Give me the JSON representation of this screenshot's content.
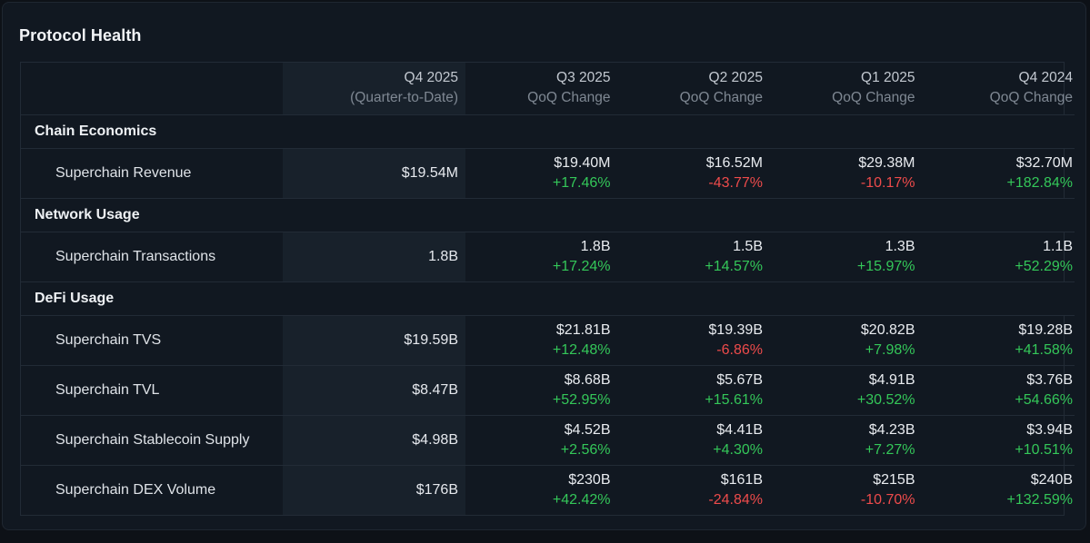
{
  "title": "Protocol Health",
  "columns": [
    {
      "label": "Q4 2025",
      "sub": "(Quarter-to-Date)"
    },
    {
      "label": "Q3 2025",
      "sub": "QoQ Change"
    },
    {
      "label": "Q2 2025",
      "sub": "QoQ Change"
    },
    {
      "label": "Q1 2025",
      "sub": "QoQ Change"
    },
    {
      "label": "Q4 2024",
      "sub": "QoQ Change"
    }
  ],
  "sections": [
    {
      "name": "Chain Economics"
    },
    {
      "name": "Network Usage"
    },
    {
      "name": "DeFi Usage"
    }
  ],
  "rows": [
    {
      "label": "Superchain Revenue",
      "current": "$19.54M",
      "cells": [
        {
          "value": "$19.40M",
          "change": "+17.46%"
        },
        {
          "value": "$16.52M",
          "change": "-43.77%"
        },
        {
          "value": "$29.38M",
          "change": "-10.17%"
        },
        {
          "value": "$32.70M",
          "change": "+182.84%"
        }
      ]
    },
    {
      "label": "Superchain Transactions",
      "current": "1.8B",
      "cells": [
        {
          "value": "1.8B",
          "change": "+17.24%"
        },
        {
          "value": "1.5B",
          "change": "+14.57%"
        },
        {
          "value": "1.3B",
          "change": "+15.97%"
        },
        {
          "value": "1.1B",
          "change": "+52.29%"
        }
      ]
    },
    {
      "label": "Superchain TVS",
      "current": "$19.59B",
      "cells": [
        {
          "value": "$21.81B",
          "change": "+12.48%"
        },
        {
          "value": "$19.39B",
          "change": "-6.86%"
        },
        {
          "value": "$20.82B",
          "change": "+7.98%"
        },
        {
          "value": "$19.28B",
          "change": "+41.58%"
        }
      ]
    },
    {
      "label": "Superchain TVL",
      "current": "$8.47B",
      "cells": [
        {
          "value": "$8.68B",
          "change": "+52.95%"
        },
        {
          "value": "$5.67B",
          "change": "+15.61%"
        },
        {
          "value": "$4.91B",
          "change": "+30.52%"
        },
        {
          "value": "$3.76B",
          "change": "+54.66%"
        }
      ]
    },
    {
      "label": "Superchain Stablecoin Supply",
      "current": "$4.98B",
      "cells": [
        {
          "value": "$4.52B",
          "change": "+2.56%"
        },
        {
          "value": "$4.41B",
          "change": "+4.30%"
        },
        {
          "value": "$4.23B",
          "change": "+7.27%"
        },
        {
          "value": "$3.94B",
          "change": "+10.51%"
        }
      ]
    },
    {
      "label": "Superchain DEX Volume",
      "current": "$176B",
      "cells": [
        {
          "value": "$230B",
          "change": "+42.42%"
        },
        {
          "value": "$161B",
          "change": "-24.84%"
        },
        {
          "value": "$215B",
          "change": "-10.70%"
        },
        {
          "value": "$240B",
          "change": "+132.59%"
        }
      ]
    }
  ],
  "colors": {
    "positive": "#34c759",
    "negative": "#ee4b4b"
  }
}
